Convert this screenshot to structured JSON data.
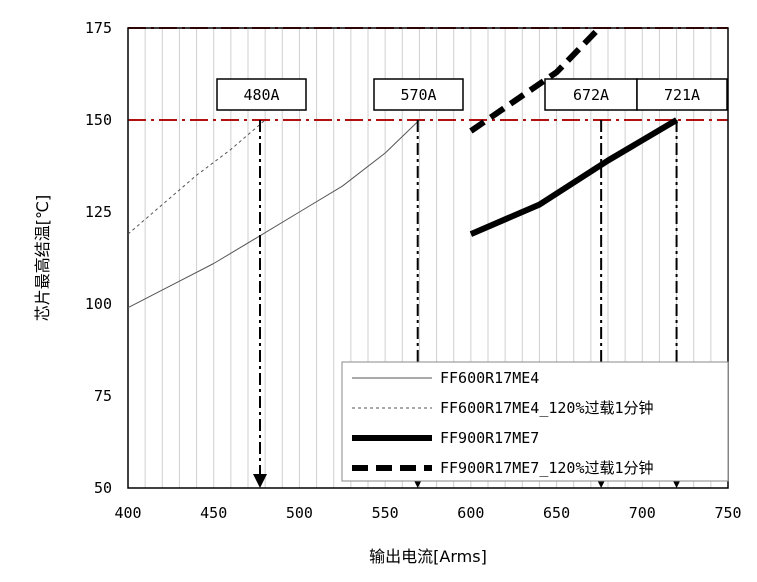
{
  "chart_data": {
    "type": "line",
    "xlabel": "输出电流[Arms]",
    "ylabel": "芯片最高结温[℃]",
    "xlim": [
      400,
      750
    ],
    "ylim": [
      50,
      175
    ],
    "x_ticks": [
      "400",
      "450",
      "500",
      "550",
      "600",
      "650",
      "700",
      "750"
    ],
    "y_ticks": [
      "50",
      "75",
      "100",
      "125",
      "150",
      "175"
    ],
    "grid": "vertical minor gridlines every 10 A",
    "legend_position": "bottom-right",
    "reference_lines": [
      {
        "y": 150,
        "style": "dash-dot",
        "color": "#b01010"
      },
      {
        "y": 175,
        "style": "dash-dot",
        "color": "#b01010"
      }
    ],
    "series": [
      {
        "name": "FF600R17ME4",
        "style": "thin-solid",
        "points": [
          [
            400,
            99
          ],
          [
            425,
            105
          ],
          [
            450,
            111
          ],
          [
            475,
            118
          ],
          [
            500,
            125
          ],
          [
            525,
            132
          ],
          [
            550,
            141
          ],
          [
            570,
            150
          ]
        ]
      },
      {
        "name": "FF600R17ME4_120%过载1分钟",
        "style": "thin-dashed",
        "points": [
          [
            400,
            119
          ],
          [
            420,
            127
          ],
          [
            440,
            135
          ],
          [
            460,
            142
          ],
          [
            480,
            150
          ]
        ]
      },
      {
        "name": "FF900R17ME7",
        "style": "thick-solid",
        "points": [
          [
            600,
            119
          ],
          [
            640,
            127
          ],
          [
            680,
            139
          ],
          [
            720,
            150
          ]
        ]
      },
      {
        "name": "FF900R17ME7_120%过载1分钟",
        "style": "thick-dashed",
        "points": [
          [
            600,
            147
          ],
          [
            625,
            155
          ],
          [
            650,
            163
          ],
          [
            675,
            175
          ]
        ]
      }
    ],
    "annotations": [
      {
        "label": "480A",
        "x": 477
      },
      {
        "label": "570A",
        "x": 569
      },
      {
        "label": "672A",
        "x": 676
      },
      {
        "label": "721A",
        "x": 720
      }
    ]
  }
}
